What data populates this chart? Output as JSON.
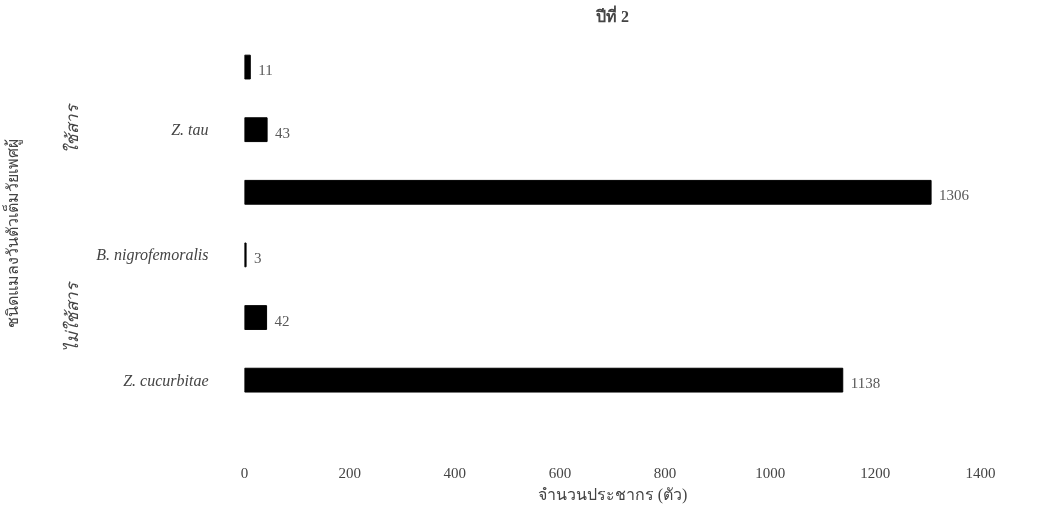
{
  "chart_data": {
    "type": "bar",
    "orientation": "horizontal",
    "title": "ปีที่ 2",
    "xlabel": "จำนวนประชากร (ตัว)",
    "ylabel": "ชนิดแมลงวันตัวเต็มวัยเพศผู้",
    "categories": [
      null,
      "Z. tau",
      null,
      "B. nigrofemoralis",
      null,
      "Z. cucurbitae"
    ],
    "values": [
      11,
      43,
      1306,
      3,
      42,
      1138
    ],
    "colors": [
      "#000000",
      "#000000",
      "#000000",
      "#000000",
      "#000000",
      "#000000"
    ],
    "annotations": [
      "ใช้สาร",
      "ไม่ใช้สาร"
    ],
    "xlim": [
      0,
      1400
    ],
    "xticks": [
      0,
      200,
      400,
      600,
      800,
      1000,
      1200,
      1400
    ],
    "data_labels": true,
    "grid": false
  }
}
